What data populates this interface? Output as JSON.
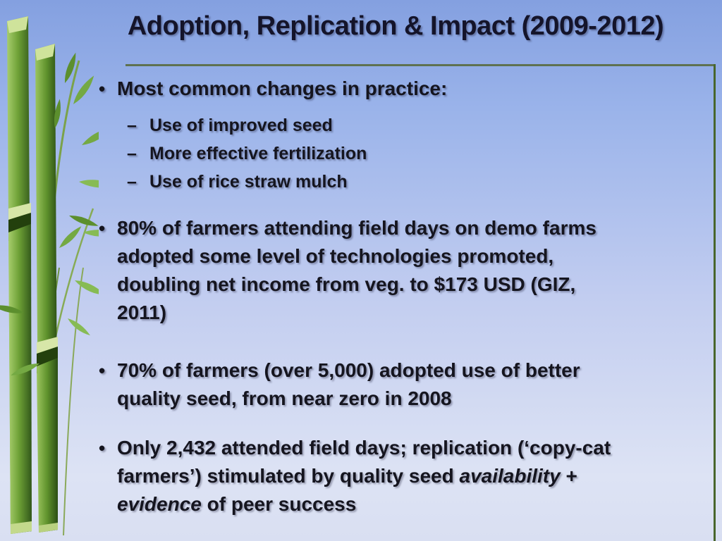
{
  "slide": {
    "title": "Adoption, Replication & Impact (2009-2012)",
    "bullet_marker": "•",
    "sub_bullet_marker": "–",
    "bullets": [
      {
        "lines": [
          [
            "Most common changes in practice:"
          ]
        ],
        "sub_bullets": [
          "Use of improved seed",
          "More effective fertilization",
          "Use of rice straw mulch"
        ]
      },
      {
        "lines": [
          [
            "80% of farmers attending field days on demo farms"
          ],
          [
            "adopted some level of technologies promoted,"
          ],
          [
            "doubling net income from veg. to $173 USD (GIZ,"
          ],
          [
            "2011)"
          ]
        ]
      },
      {
        "lines": [
          [
            "70% of farmers (over 5,000) adopted use of better"
          ],
          [
            "quality seed, from near zero in 2008"
          ]
        ]
      },
      {
        "lines": [
          [
            "Only 2,432 attended field days; replication (‘copy-cat"
          ],
          [
            "farmers’) stimulated by quality seed ",
            {
              "italic": "availability"
            },
            " +"
          ],
          [
            {
              "italic": "evidence"
            },
            " of peer success"
          ]
        ]
      }
    ],
    "colors": {
      "background_top": "#84a0e0",
      "background_bottom": "#dde3f4",
      "title_text": "#14142a",
      "body_text": "#15151f",
      "divider_line": "#5e7150",
      "right_border": "#48662c",
      "bamboo_green": "#6fa338"
    },
    "decorations": {
      "left_image": "bamboo-stalks-clipart"
    }
  }
}
